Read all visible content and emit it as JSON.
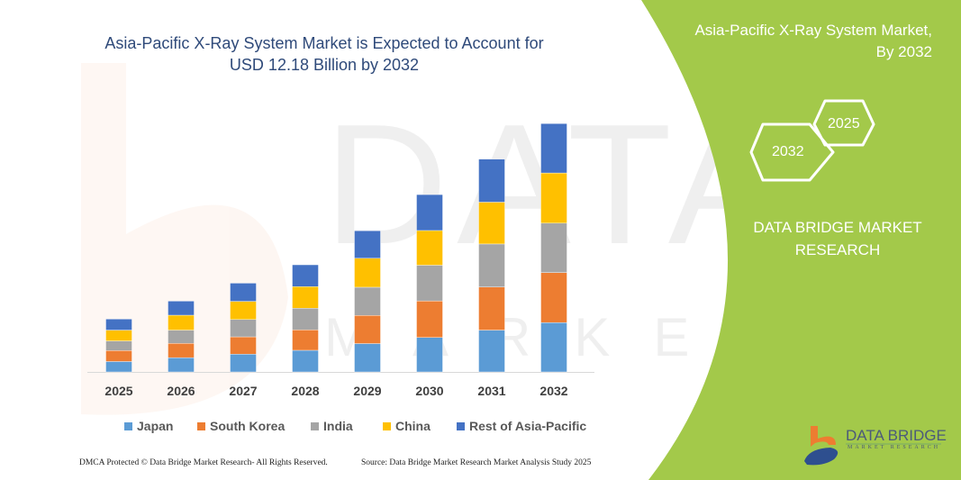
{
  "chart_data": {
    "type": "bar",
    "stacked": true,
    "title": "Asia-Pacific X-Ray System Market is Expected to Account for USD 12.18 Billion by 2032",
    "xlabel": "",
    "ylabel": "",
    "grid": false,
    "legend_position": "bottom",
    "categories": [
      "2025",
      "2026",
      "2027",
      "2028",
      "2029",
      "2030",
      "2031",
      "2032"
    ],
    "series": [
      {
        "name": "Japan",
        "color": "#5B9BD5",
        "values": [
          0.51,
          0.7,
          0.87,
          1.06,
          1.39,
          1.69,
          2.05,
          2.42
        ]
      },
      {
        "name": "South Korea",
        "color": "#ED7D31",
        "values": [
          0.54,
          0.7,
          0.85,
          1.0,
          1.38,
          1.79,
          2.11,
          2.45
        ]
      },
      {
        "name": "India",
        "color": "#A5A5A5",
        "values": [
          0.47,
          0.65,
          0.85,
          1.06,
          1.38,
          1.75,
          2.11,
          2.42
        ]
      },
      {
        "name": "China",
        "color": "#FFC000",
        "values": [
          0.53,
          0.73,
          0.89,
          1.06,
          1.42,
          1.7,
          2.05,
          2.46
        ]
      },
      {
        "name": "Rest of Asia-Pacific",
        "color": "#4472C4",
        "values": [
          0.54,
          0.69,
          0.89,
          1.07,
          1.35,
          1.76,
          2.11,
          2.42
        ]
      }
    ],
    "ylim": [
      0,
      12.18
    ]
  },
  "title_line1": "Asia-Pacific X-Ray System Market is Expected to Account for",
  "title_line2": "USD 12.18 Billion by 2032",
  "side_panel": {
    "title_line1": "Asia-Pacific X-Ray System Market,",
    "title_line2": "By 2032",
    "hex_2025": "2025",
    "hex_2032": "2032",
    "brand_line1": "DATA BRIDGE MARKET",
    "brand_line2": "RESEARCH",
    "color": "#A3C94A"
  },
  "logo": {
    "name": "DATA BRIDGE",
    "tagline": "MARKET RESEARCH"
  },
  "footer": {
    "copyright": "DMCA Protected © Data Bridge Market Research-  All Rights Reserved.",
    "source": "Source: Data Bridge Market Research  Market Analysis Study 2025"
  }
}
